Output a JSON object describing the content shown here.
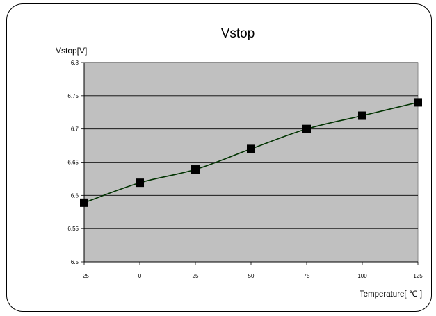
{
  "chart_data": {
    "type": "line",
    "title": "Vstop",
    "ylabel": "Vstop[V]",
    "xlabel": "Temperature[ ℃ ]",
    "x": [
      -25,
      0,
      25,
      50,
      75,
      100,
      125
    ],
    "y_ticks": [
      "6.5",
      "6.55",
      "6.6",
      "6.65",
      "6.7",
      "6.75",
      "6.8"
    ],
    "x_ticks": [
      "−25",
      "0",
      "25",
      "50",
      "75",
      "100",
      "125"
    ],
    "series": [
      {
        "values": [
          6.589,
          6.619,
          6.639,
          6.67,
          6.7,
          6.72,
          6.74
        ]
      }
    ],
    "xlim": [
      -25,
      125
    ],
    "ylim": [
      6.5,
      6.8
    ],
    "grid": "horizontal",
    "colors": {
      "plot_bg": "#c0c0c0",
      "line": "#003300",
      "marker": "#000000"
    }
  }
}
